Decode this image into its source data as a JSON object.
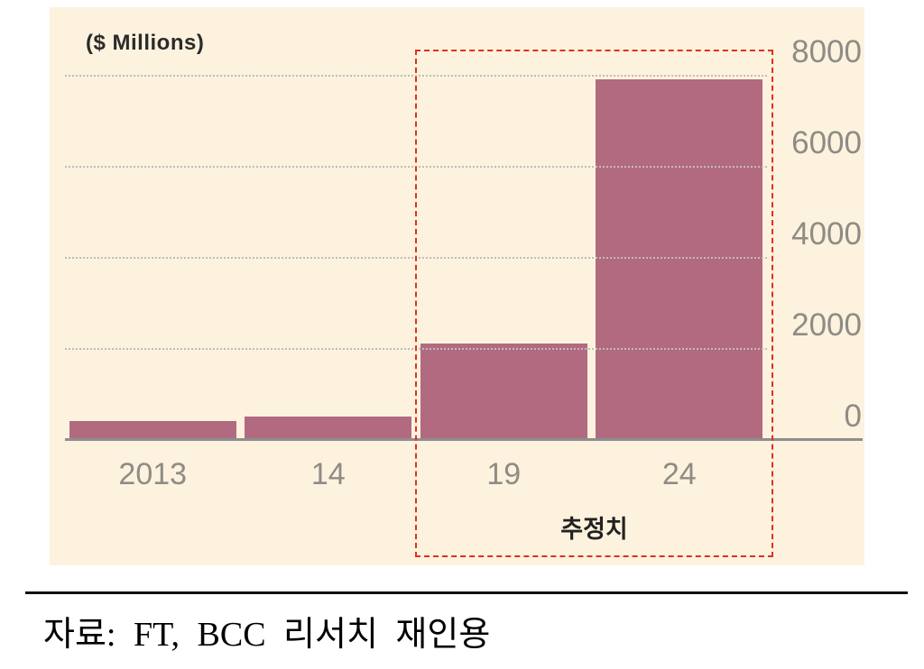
{
  "chart": {
    "units_label": "($ Millions)",
    "estimate_label": "추정치"
  },
  "source": {
    "text": "자료: FT, BCC 리서치 재인용"
  },
  "colors": {
    "chart_background": "#fcf2de",
    "bar": "#b26a80",
    "gridline": "#bdbdbd",
    "axis_line": "#8e8e8e",
    "axis_text": "#8f8b85",
    "estimate_box": "#e0301e",
    "title_text": "#2b2b2b"
  },
  "chart_data": {
    "type": "bar",
    "title": "($ Millions)",
    "categories": [
      "2013",
      "14",
      "19",
      "24"
    ],
    "values": [
      400,
      500,
      2100,
      7900
    ],
    "xlabel": "",
    "ylabel": "$ Millions",
    "ylim": [
      0,
      8000
    ],
    "yticks": [
      0,
      2000,
      4000,
      6000,
      8000
    ],
    "y_axis_position": "right",
    "grid": "horizontal-dotted",
    "legend": "none",
    "annotation": {
      "label": "추정치",
      "applies_to_categories": [
        "19",
        "24"
      ],
      "style": "red-dashed-box"
    }
  }
}
